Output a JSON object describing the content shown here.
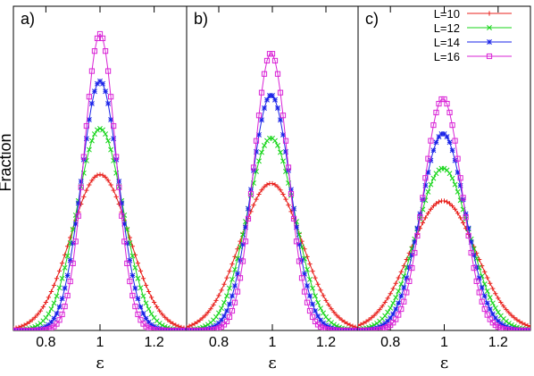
{
  "chart_data": {
    "type": "line",
    "ylabel": "Fraction",
    "xlabel": "ε",
    "xlim": [
      0.68,
      1.32
    ],
    "ylim": [
      0,
      1
    ],
    "x_ticks": [
      "0.8",
      "1",
      "1.2"
    ],
    "x_tick_values": [
      0.8,
      1.0,
      1.2
    ],
    "grid": false,
    "legend_position": "top-right (panel c)",
    "x_step": 0.01,
    "series_meta": [
      {
        "name": "L=10",
        "color": "#e8201c",
        "marker": "plus"
      },
      {
        "name": "L=12",
        "color": "#17d51a",
        "marker": "cross"
      },
      {
        "name": "L=14",
        "color": "#1a23e8",
        "marker": "star"
      },
      {
        "name": "L=16",
        "color": "#d923d6",
        "marker": "open-square"
      }
    ],
    "panels": [
      {
        "label": "a)",
        "series": [
          {
            "name": "L=10",
            "peak_x": 1.0,
            "peak_y": 0.526,
            "width": 0.108
          },
          {
            "name": "L=12",
            "peak_x": 1.0,
            "peak_y": 0.681,
            "width": 0.085
          },
          {
            "name": "L=14",
            "peak_x": 1.0,
            "peak_y": 0.841,
            "width": 0.069
          },
          {
            "name": "L=16",
            "peak_x": 1.0,
            "peak_y": 1.0,
            "width": 0.058
          }
        ]
      },
      {
        "label": "b)",
        "series": [
          {
            "name": "L=10",
            "peak_x": 0.995,
            "peak_y": 0.496,
            "width": 0.115
          },
          {
            "name": "L=12",
            "peak_x": 0.995,
            "peak_y": 0.649,
            "width": 0.089
          },
          {
            "name": "L=14",
            "peak_x": 0.995,
            "peak_y": 0.794,
            "width": 0.074
          },
          {
            "name": "L=16",
            "peak_x": 0.995,
            "peak_y": 0.936,
            "width": 0.063
          }
        ]
      },
      {
        "label": "c)",
        "series": [
          {
            "name": "L=10",
            "peak_x": 0.995,
            "peak_y": 0.437,
            "width": 0.123
          },
          {
            "name": "L=12",
            "peak_x": 0.995,
            "peak_y": 0.547,
            "width": 0.098
          },
          {
            "name": "L=14",
            "peak_x": 0.995,
            "peak_y": 0.664,
            "width": 0.083
          },
          {
            "name": "L=16",
            "peak_x": 0.995,
            "peak_y": 0.782,
            "width": 0.071
          }
        ]
      }
    ]
  }
}
